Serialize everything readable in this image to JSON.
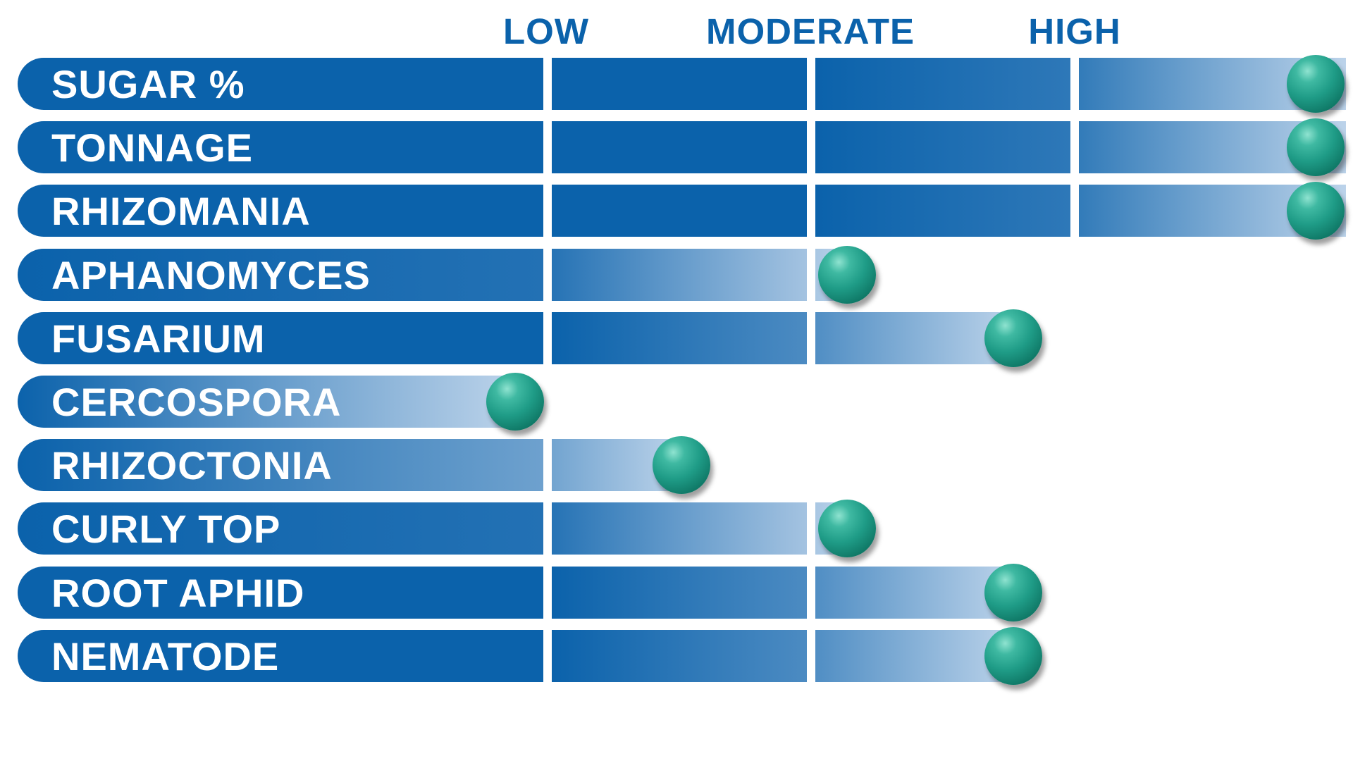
{
  "chart_data": {
    "type": "bar",
    "orientation": "horizontal",
    "scale_labels": [
      "LOW",
      "MODERATE",
      "HIGH"
    ],
    "categories": [
      "SUGAR %",
      "TONNAGE",
      "RHIZOMANIA",
      "APHANOMYCES",
      "FUSARIUM",
      "CERCOSPORA",
      "RHIZOCTONIA",
      "CURLY TOP",
      "ROOT APHID",
      "NEMATODE"
    ],
    "values": [
      4.0,
      4.0,
      4.0,
      2.5,
      3.0,
      1.5,
      2.0,
      2.5,
      3.0,
      3.0
    ],
    "xlim": [
      0,
      4
    ],
    "grid": false,
    "legend": "none"
  },
  "colors": {
    "bar_dark": "#0b62ab",
    "bar_light": "#bcd3ea",
    "scale_label": "#0b62ab",
    "label_text": "#ffffff",
    "marker": "#1f9c87"
  }
}
